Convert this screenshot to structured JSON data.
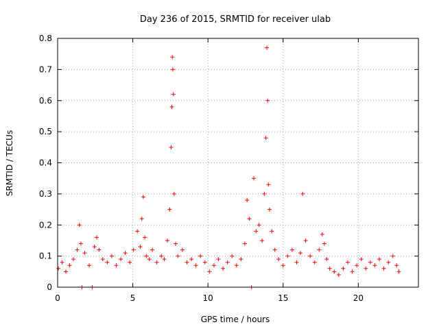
{
  "chart_data": {
    "type": "scatter",
    "title": "Day 236 of 2015, SRMTID for receiver ulab",
    "xlabel": "GPS time / hours",
    "ylabel": "SRMTID / TECUs",
    "xlim": [
      0,
      24
    ],
    "ylim": [
      0,
      0.8
    ],
    "xticks": [
      "0",
      "5",
      "10",
      "15",
      "20"
    ],
    "yticks": [
      "0",
      "0.1",
      "0.2",
      "0.3",
      "0.4",
      "0.5",
      "0.6",
      "0.7",
      "0.8"
    ],
    "grid": true,
    "marker": "+",
    "color": "#ff0000",
    "series": [
      {
        "name": "SRMTID",
        "x": [
          0.05,
          0.3,
          0.55,
          0.8,
          1.05,
          1.3,
          1.45,
          1.55,
          1.62,
          1.8,
          2.1,
          2.3,
          2.45,
          2.6,
          2.75,
          3.0,
          3.3,
          3.6,
          3.9,
          4.2,
          4.5,
          4.8,
          5.05,
          5.3,
          5.5,
          5.6,
          5.7,
          5.8,
          5.9,
          6.1,
          6.3,
          6.6,
          6.9,
          7.1,
          7.3,
          7.45,
          7.55,
          7.6,
          7.63,
          7.66,
          7.7,
          7.75,
          7.85,
          8.0,
          8.3,
          8.6,
          8.9,
          9.2,
          9.5,
          9.8,
          10.1,
          10.4,
          10.7,
          11.0,
          11.3,
          11.6,
          11.9,
          12.2,
          12.45,
          12.6,
          12.75,
          12.9,
          13.05,
          13.2,
          13.4,
          13.6,
          13.75,
          13.85,
          13.92,
          13.97,
          14.02,
          14.1,
          14.25,
          14.45,
          14.7,
          15.0,
          15.3,
          15.6,
          15.9,
          16.15,
          16.3,
          16.5,
          16.8,
          17.1,
          17.4,
          17.6,
          17.75,
          17.9,
          18.1,
          18.4,
          18.7,
          19.0,
          19.3,
          19.6,
          19.9,
          20.2,
          20.5,
          20.8,
          21.1,
          21.4,
          21.7,
          22.0,
          22.3,
          22.55,
          22.7
        ],
        "values": [
          0.06,
          0.08,
          0.05,
          0.07,
          0.09,
          0.12,
          0.2,
          0.14,
          0.0,
          0.11,
          0.07,
          0.0,
          0.13,
          0.16,
          0.12,
          0.09,
          0.08,
          0.1,
          0.07,
          0.09,
          0.11,
          0.08,
          0.12,
          0.18,
          0.13,
          0.22,
          0.29,
          0.16,
          0.1,
          0.09,
          0.12,
          0.08,
          0.1,
          0.09,
          0.15,
          0.25,
          0.45,
          0.58,
          0.74,
          0.7,
          0.62,
          0.3,
          0.14,
          0.1,
          0.12,
          0.08,
          0.09,
          0.07,
          0.1,
          0.08,
          0.05,
          0.07,
          0.09,
          0.06,
          0.08,
          0.1,
          0.07,
          0.09,
          0.14,
          0.28,
          0.22,
          0.0,
          0.35,
          0.18,
          0.2,
          0.15,
          0.3,
          0.48,
          0.77,
          0.6,
          0.33,
          0.25,
          0.18,
          0.12,
          0.09,
          0.07,
          0.1,
          0.12,
          0.08,
          0.11,
          0.3,
          0.15,
          0.1,
          0.08,
          0.12,
          0.17,
          0.14,
          0.09,
          0.06,
          0.05,
          0.04,
          0.06,
          0.08,
          0.05,
          0.07,
          0.09,
          0.06,
          0.08,
          0.07,
          0.09,
          0.06,
          0.08,
          0.1,
          0.07,
          0.05
        ]
      }
    ]
  }
}
